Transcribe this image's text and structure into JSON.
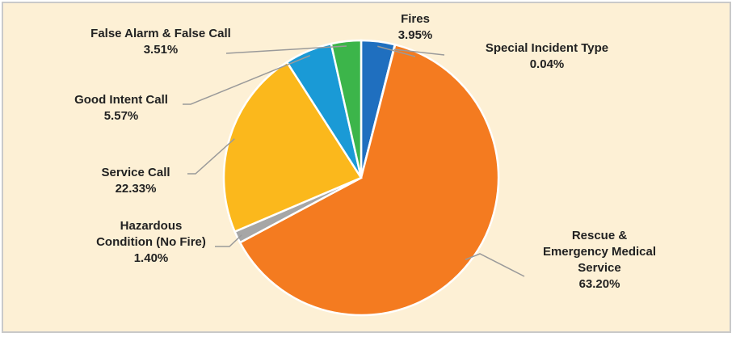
{
  "chart_data": {
    "type": "pie",
    "title": "",
    "slices": [
      {
        "label": [
          "Fires"
        ],
        "value": 3.95,
        "value_label": "3.95%",
        "color": "#1f6fbf"
      },
      {
        "label": [
          "Special Incident Type"
        ],
        "value": 0.04,
        "value_label": "0.04%",
        "color": "#6b6b6b"
      },
      {
        "label": [
          "Rescue &",
          "Emergency Medical",
          "Service"
        ],
        "value": 63.2,
        "value_label": "63.20%",
        "color": "#f47b20"
      },
      {
        "label": [
          "Hazardous",
          "Condition (No Fire)"
        ],
        "value": 1.4,
        "value_label": "1.40%",
        "color": "#a6a6a6"
      },
      {
        "label": [
          "Service Call"
        ],
        "value": 22.33,
        "value_label": "22.33%",
        "color": "#fbb81c"
      },
      {
        "label": [
          "Good Intent Call"
        ],
        "value": 5.57,
        "value_label": "5.57%",
        "color": "#1a9ad6"
      },
      {
        "label": [
          "False Alarm & False Call"
        ],
        "value": 3.51,
        "value_label": "3.51%",
        "color": "#3cb54a"
      }
    ],
    "start_angle_deg": 0,
    "direction": "clockwise",
    "legend": "none",
    "leader_line_color": "#9a9a9a"
  }
}
